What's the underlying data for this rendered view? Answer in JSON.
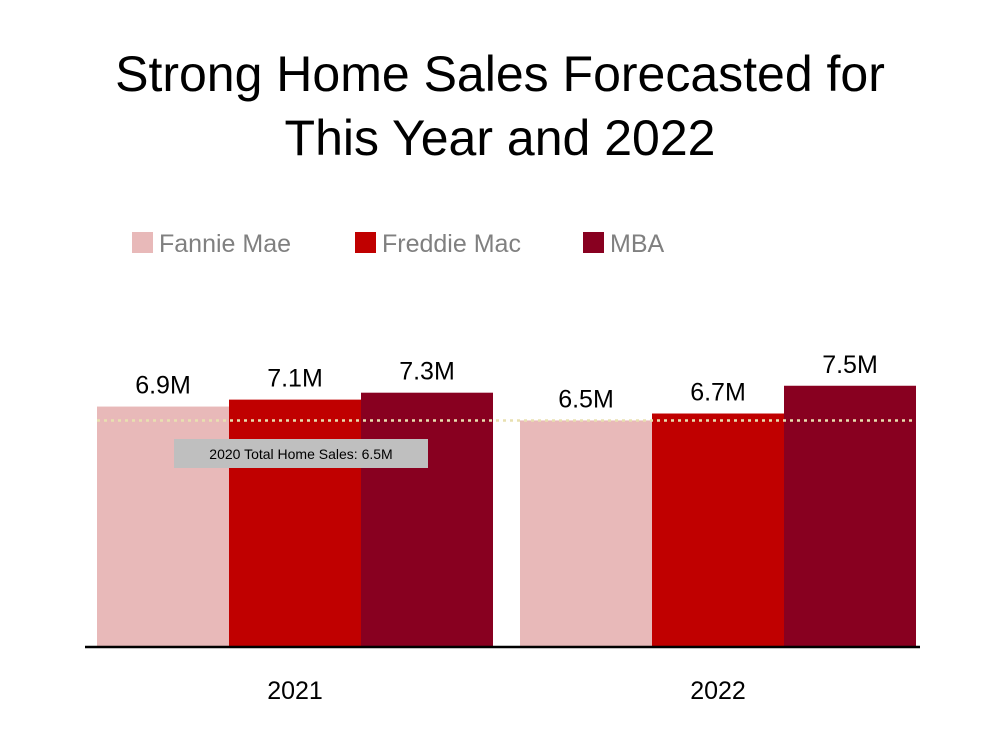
{
  "title_lines": [
    "Strong Home Sales Forecasted for",
    "This Year and 2022"
  ],
  "chart_data": {
    "type": "bar",
    "categories": [
      "2021",
      "2022"
    ],
    "series": [
      {
        "name": "Fannie Mae",
        "color": "#e8b9b9",
        "values": [
          6.9,
          6.5
        ],
        "labels": [
          "6.9M",
          "6.5M"
        ]
      },
      {
        "name": "Freddie Mac",
        "color": "#c00000",
        "values": [
          7.1,
          6.7
        ],
        "labels": [
          "7.1M",
          "6.7M"
        ]
      },
      {
        "name": "MBA",
        "color": "#880020",
        "values": [
          7.3,
          7.5
        ],
        "labels": [
          "7.3M",
          "7.5M"
        ]
      }
    ],
    "reference_line": {
      "value": 6.5,
      "label": "2020 Total Home Sales: 6.5M"
    },
    "legend_position": "top-left",
    "grid": false,
    "axis_baseline_color": "#000000"
  }
}
